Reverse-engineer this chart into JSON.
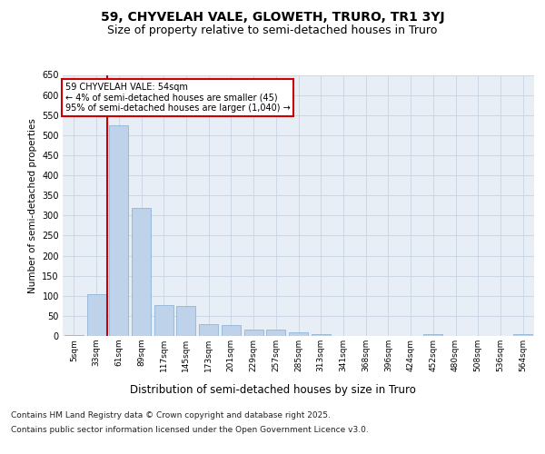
{
  "title_line1": "59, CHYVELAH VALE, GLOWETH, TRURO, TR1 3YJ",
  "title_line2": "Size of property relative to semi-detached houses in Truro",
  "xlabel": "Distribution of semi-detached houses by size in Truro",
  "ylabel": "Number of semi-detached properties",
  "annotation_title": "59 CHYVELAH VALE: 54sqm",
  "annotation_line1": "← 4% of semi-detached houses are smaller (45)",
  "annotation_line2": "95% of semi-detached houses are larger (1,040) →",
  "footer_line1": "Contains HM Land Registry data © Crown copyright and database right 2025.",
  "footer_line2": "Contains public sector information licensed under the Open Government Licence v3.0.",
  "bins": [
    "5sqm",
    "33sqm",
    "61sqm",
    "89sqm",
    "117sqm",
    "145sqm",
    "173sqm",
    "201sqm",
    "229sqm",
    "257sqm",
    "285sqm",
    "313sqm",
    "341sqm",
    "368sqm",
    "396sqm",
    "424sqm",
    "452sqm",
    "480sqm",
    "508sqm",
    "536sqm",
    "564sqm"
  ],
  "bar_values": [
    3,
    103,
    525,
    318,
    78,
    75,
    30,
    28,
    16,
    15,
    10,
    5,
    0,
    0,
    0,
    0,
    5,
    0,
    0,
    0,
    5
  ],
  "bar_color": "#bed3ea",
  "bar_edge_color": "#90b4d8",
  "vline_color": "#cc0000",
  "grid_color": "#c8d4e4",
  "bg_color": "#e8eef6",
  "annotation_box_color": "#ffffff",
  "annotation_box_edge": "#cc0000",
  "ylim": [
    0,
    650
  ],
  "yticks": [
    0,
    50,
    100,
    150,
    200,
    250,
    300,
    350,
    400,
    450,
    500,
    550,
    600,
    650
  ],
  "title_fontsize": 10,
  "subtitle_fontsize": 9,
  "ylabel_fontsize": 7.5,
  "xlabel_fontsize": 8.5,
  "tick_fontsize": 7,
  "xtick_fontsize": 6.5,
  "footer_fontsize": 6.5
}
